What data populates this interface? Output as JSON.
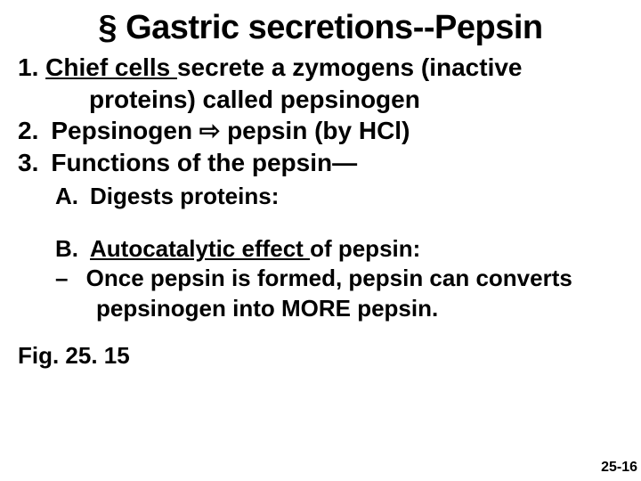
{
  "title": "§ Gastric secretions--Pepsin",
  "item1_prefix": "1. ",
  "item1_underlined": "Chief cells ",
  "item1_rest": "secrete a zymogens (inactive",
  "item1_cont": "proteins) called pepsinogen",
  "item2_prefix": "2. Pepsinogen ",
  "item2_arrow": "⇨",
  "item2_rest": " pepsin (by HCl)",
  "item3": "3. Functions of the pepsin—",
  "subA": "A. Digests proteins:",
  "subB_prefix": "B. ",
  "subB_underlined": "Autocatalytic effect ",
  "subB_rest": "of pepsin:",
  "subB_dash": "–  Once pepsin is formed, pepsin can converts",
  "subB_cont": "pepsinogen into MORE pepsin.",
  "figRef": "Fig. 25. 15",
  "slideNumber": "25-16"
}
